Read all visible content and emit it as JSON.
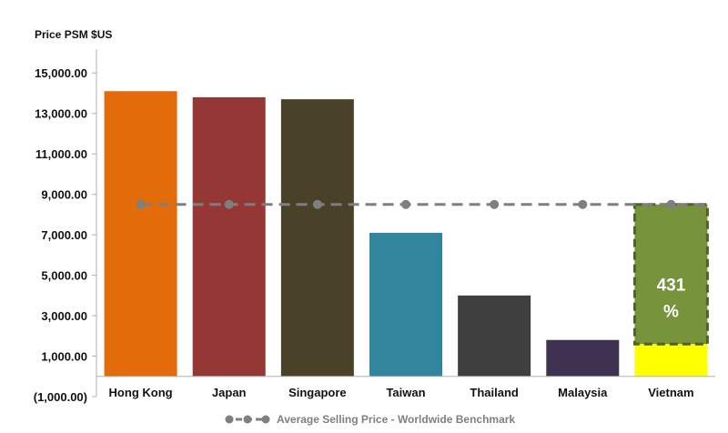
{
  "chart_data": {
    "type": "bar",
    "ylabel": "Price PSM $US",
    "ylim": [
      -1000,
      16000
    ],
    "yticks": [
      -1000,
      1000,
      3000,
      5000,
      7000,
      9000,
      11000,
      13000,
      15000
    ],
    "ytick_labels": [
      "(1,000.00)",
      "1,000.00",
      "3,000.00",
      "5,000.00",
      "7,000.00",
      "9,000.00",
      "11,000.00",
      "13,000.00",
      "15,000.00"
    ],
    "categories": [
      "Hong Kong",
      "Japan",
      "Singapore",
      "Taiwan",
      "Thailand",
      "Malaysia",
      "Vietnam"
    ],
    "values": [
      14100,
      13800,
      13700,
      7100,
      4000,
      1800,
      1600
    ],
    "bar_colors": [
      "#e36c0a",
      "#953735",
      "#4a4129",
      "#31859c",
      "#3f3f3f",
      "#3f3151",
      "#ffff00"
    ],
    "benchmark": {
      "name": "Average Selling Price - Worldwide Benchmark",
      "value": 8500,
      "color": "#7f7f7f"
    },
    "gap_annotation": {
      "category": "Vietnam",
      "from": 1600,
      "to": 8500,
      "fill": "#77933c",
      "border": "#4f6228",
      "label_lines": [
        "431",
        "%"
      ]
    },
    "grid": false,
    "legend": "bottom"
  }
}
